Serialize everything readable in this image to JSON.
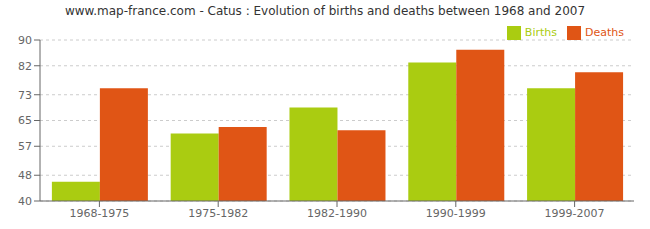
{
  "chart_data": {
    "type": "bar",
    "title": "www.map-france.com - Catus : Evolution of births and deaths between 1968 and 2007",
    "categories": [
      "1968-1975",
      "1975-1982",
      "1982-1990",
      "1990-1999",
      "1999-2007"
    ],
    "series": [
      {
        "name": "Births",
        "color": "#aacc11",
        "values": [
          46,
          61,
          69,
          83,
          75
        ]
      },
      {
        "name": "Deaths",
        "color": "#e05515",
        "values": [
          75,
          63,
          62,
          87,
          80
        ]
      }
    ],
    "ylim": [
      40,
      90
    ],
    "yticks": [
      40,
      48,
      57,
      65,
      73,
      82,
      90
    ],
    "grid": true,
    "legend": "upper right"
  }
}
